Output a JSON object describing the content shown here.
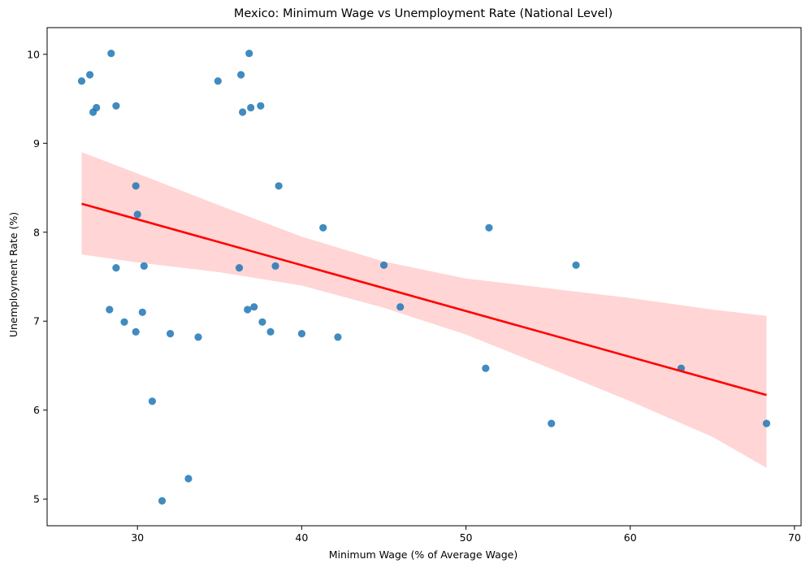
{
  "chart_data": {
    "type": "scatter",
    "title": "Mexico: Minimum Wage vs Unemployment Rate (National Level)",
    "xlabel": "Minimum Wage (% of Average Wage)",
    "ylabel": "Unemployment Rate (%)",
    "xlim": [
      24.5,
      70.4
    ],
    "ylim": [
      4.7,
      10.3
    ],
    "xticks": [
      30,
      40,
      50,
      60,
      70
    ],
    "yticks": [
      5,
      6,
      7,
      8,
      9,
      10
    ],
    "xtick_labels": [
      "30",
      "40",
      "50",
      "60",
      "70"
    ],
    "ytick_labels": [
      "5",
      "6",
      "7",
      "8",
      "9",
      "10"
    ],
    "grid": false,
    "colors": {
      "points": "#1f77b4",
      "fit_line": "#ff0000",
      "confidence_band": "#ffb3b3"
    },
    "points": [
      {
        "x": 26.6,
        "y": 9.7
      },
      {
        "x": 27.1,
        "y": 9.77
      },
      {
        "x": 27.3,
        "y": 9.35
      },
      {
        "x": 27.5,
        "y": 9.4
      },
      {
        "x": 28.4,
        "y": 10.01
      },
      {
        "x": 28.7,
        "y": 9.42
      },
      {
        "x": 34.9,
        "y": 9.7
      },
      {
        "x": 36.3,
        "y": 9.77
      },
      {
        "x": 36.4,
        "y": 9.35
      },
      {
        "x": 36.9,
        "y": 9.4
      },
      {
        "x": 36.8,
        "y": 10.01
      },
      {
        "x": 37.5,
        "y": 9.42
      },
      {
        "x": 29.9,
        "y": 8.52
      },
      {
        "x": 38.6,
        "y": 8.52
      },
      {
        "x": 30.0,
        "y": 8.2
      },
      {
        "x": 41.3,
        "y": 8.05
      },
      {
        "x": 51.4,
        "y": 8.05
      },
      {
        "x": 28.7,
        "y": 7.6
      },
      {
        "x": 30.4,
        "y": 7.62
      },
      {
        "x": 36.2,
        "y": 7.6
      },
      {
        "x": 38.4,
        "y": 7.62
      },
      {
        "x": 45.0,
        "y": 7.63
      },
      {
        "x": 56.7,
        "y": 7.63
      },
      {
        "x": 28.3,
        "y": 7.13
      },
      {
        "x": 30.3,
        "y": 7.1
      },
      {
        "x": 36.7,
        "y": 7.13
      },
      {
        "x": 37.1,
        "y": 7.16
      },
      {
        "x": 46.0,
        "y": 7.16
      },
      {
        "x": 29.2,
        "y": 6.99
      },
      {
        "x": 37.6,
        "y": 6.99
      },
      {
        "x": 29.9,
        "y": 6.88
      },
      {
        "x": 32.0,
        "y": 6.86
      },
      {
        "x": 33.7,
        "y": 6.82
      },
      {
        "x": 38.1,
        "y": 6.88
      },
      {
        "x": 40.0,
        "y": 6.86
      },
      {
        "x": 42.2,
        "y": 6.82
      },
      {
        "x": 51.2,
        "y": 6.47
      },
      {
        "x": 63.1,
        "y": 6.47
      },
      {
        "x": 30.9,
        "y": 6.1
      },
      {
        "x": 55.2,
        "y": 5.85
      },
      {
        "x": 68.3,
        "y": 5.85
      },
      {
        "x": 33.1,
        "y": 5.23
      },
      {
        "x": 31.5,
        "y": 4.98
      }
    ],
    "regression": {
      "x_range": [
        26.6,
        68.3
      ],
      "line": [
        {
          "x": 26.6,
          "y": 8.32
        },
        {
          "x": 68.3,
          "y": 6.17
        }
      ],
      "ci_upper": [
        {
          "x": 26.6,
          "y": 8.9
        },
        {
          "x": 30,
          "y": 8.66
        },
        {
          "x": 35,
          "y": 8.3
        },
        {
          "x": 40,
          "y": 7.95
        },
        {
          "x": 45,
          "y": 7.67
        },
        {
          "x": 50,
          "y": 7.48
        },
        {
          "x": 55,
          "y": 7.37
        },
        {
          "x": 60,
          "y": 7.26
        },
        {
          "x": 65,
          "y": 7.13
        },
        {
          "x": 68.3,
          "y": 7.06
        }
      ],
      "ci_lower": [
        {
          "x": 26.6,
          "y": 7.75
        },
        {
          "x": 30,
          "y": 7.66
        },
        {
          "x": 35,
          "y": 7.55
        },
        {
          "x": 40,
          "y": 7.4
        },
        {
          "x": 45,
          "y": 7.15
        },
        {
          "x": 50,
          "y": 6.85
        },
        {
          "x": 55,
          "y": 6.48
        },
        {
          "x": 60,
          "y": 6.1
        },
        {
          "x": 65,
          "y": 5.7
        },
        {
          "x": 68.3,
          "y": 5.35
        }
      ]
    }
  }
}
